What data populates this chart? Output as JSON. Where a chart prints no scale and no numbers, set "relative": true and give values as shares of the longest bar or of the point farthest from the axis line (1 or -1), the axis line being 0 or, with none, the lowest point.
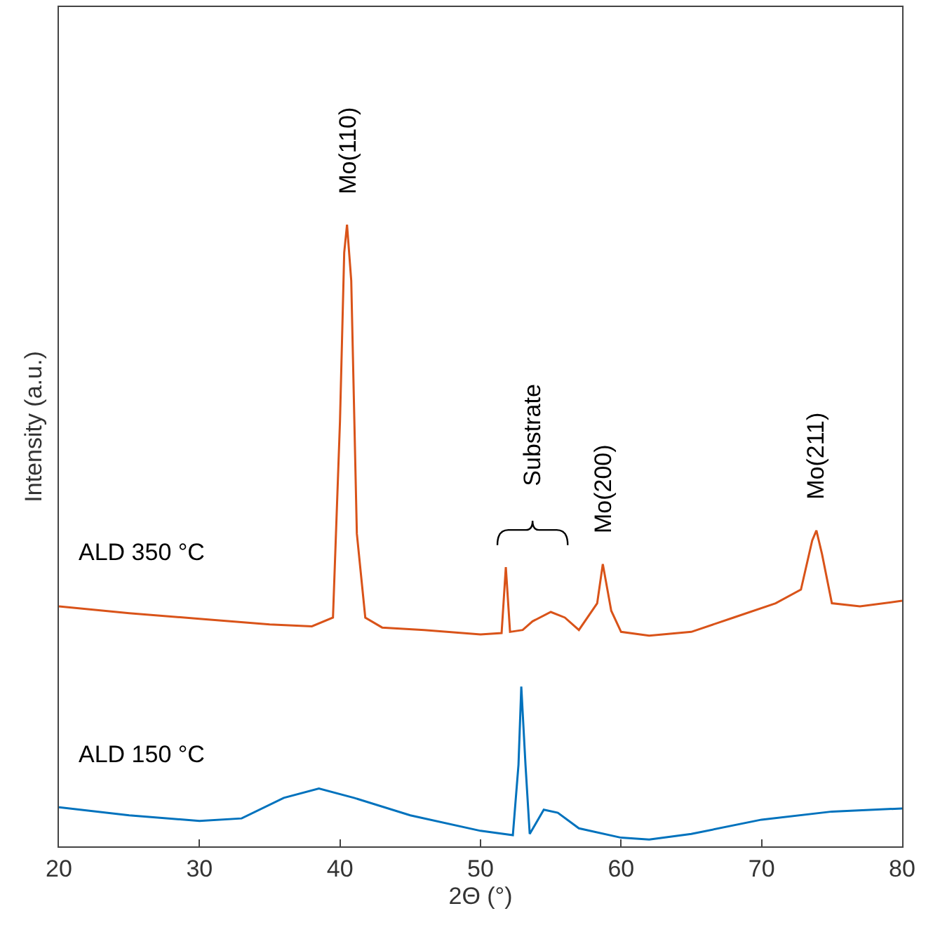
{
  "chart_data": {
    "type": "line",
    "relative": true,
    "xlabel": "2Θ (°)",
    "ylabel": "Intensity (a.u.)",
    "xlim": [
      20,
      80
    ],
    "xticks": [
      20,
      30,
      40,
      50,
      60,
      70,
      80
    ],
    "legend": false,
    "marker": "none",
    "line_style": "solid",
    "series": [
      {
        "name": "ALD 350 °C",
        "color": "#d95319",
        "x": [
          20,
          25,
          30,
          35,
          38,
          39.5,
          40,
          40.3,
          40.5,
          40.8,
          41.2,
          41.8,
          43,
          46,
          50,
          51.5,
          51.8,
          52.1,
          53,
          53.7,
          55,
          56,
          57,
          58.3,
          58.7,
          59.3,
          60,
          62,
          65,
          68,
          71,
          72.8,
          73.6,
          73.9,
          74.3,
          75,
          77,
          80
        ],
        "values": [
          0.386,
          0.375,
          0.366,
          0.357,
          0.354,
          0.368,
          0.684,
          0.955,
          1,
          0.91,
          0.503,
          0.368,
          0.352,
          0.348,
          0.341,
          0.343,
          0.449,
          0.345,
          0.348,
          0.362,
          0.377,
          0.368,
          0.348,
          0.391,
          0.454,
          0.379,
          0.345,
          0.339,
          0.345,
          0.368,
          0.391,
          0.413,
          0.492,
          0.508,
          0.47,
          0.391,
          0.386,
          0.395
        ]
      },
      {
        "name": "ALD 150 °C",
        "color": "#0072bd",
        "x": [
          20,
          25,
          30,
          33,
          36,
          38.5,
          41,
          45,
          50,
          52.3,
          52.7,
          52.9,
          53.2,
          53.5,
          54.5,
          55.5,
          57,
          60,
          62,
          65,
          70,
          75,
          80
        ],
        "values": [
          0.063,
          0.05,
          0.041,
          0.045,
          0.078,
          0.093,
          0.078,
          0.05,
          0.025,
          0.018,
          0.131,
          0.257,
          0.131,
          0.02,
          0.059,
          0.054,
          0.029,
          0.014,
          0.011,
          0.02,
          0.043,
          0.056,
          0.061
        ]
      }
    ],
    "annotations": [
      {
        "text": "Mo(110)",
        "x": 40.5,
        "y": 1
      },
      "Substrate",
      {
        "text": "Mo(200)",
        "x": 58.7,
        "y": 0.454
      },
      {
        "text": "Mo(211)",
        "x": 73.9,
        "y": 0.508
      }
    ]
  }
}
